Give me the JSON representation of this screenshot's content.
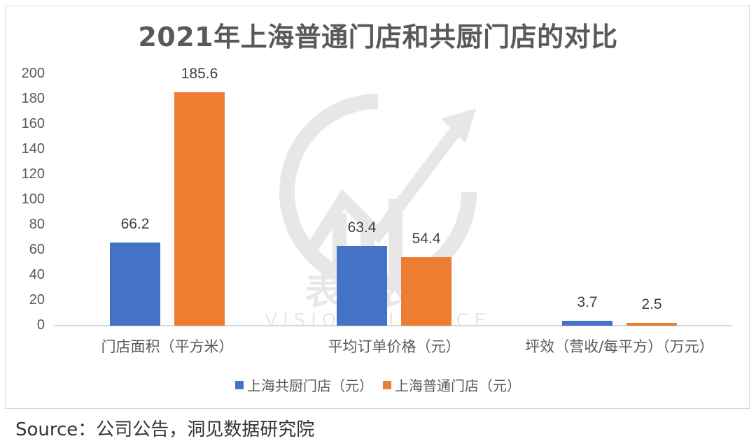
{
  "chart_data": {
    "type": "bar",
    "title": "2021年上海普通门店和共厨门店的对比",
    "categories": [
      "门店面积（平方米）",
      "平均订单价格（元）",
      "坪效（营收/每平方）（万元）"
    ],
    "series": [
      {
        "name": "上海共厨门店（元）",
        "color": "#4472C4",
        "values": [
          66.2,
          63.4,
          3.7
        ],
        "labels": [
          "66.2",
          "63.4",
          "3.7"
        ]
      },
      {
        "name": "上海普通门店（元）",
        "color": "#ED7D31",
        "values": [
          185.6,
          54.4,
          2.5
        ],
        "labels": [
          "185.6",
          "54.4",
          "2.5"
        ]
      }
    ],
    "xlabel": "",
    "ylabel": "",
    "ylim": [
      0,
      200
    ],
    "yticks": [
      "200",
      "180",
      "160",
      "140",
      "120",
      "100",
      "80",
      "60",
      "40",
      "20",
      "0"
    ],
    "grid": false,
    "legend_position": "bottom"
  },
  "watermark": {
    "text_cn": "表外表里",
    "text_en": "VISION FINANCE"
  },
  "source": "Source：公司公告，洞见数据研究院"
}
